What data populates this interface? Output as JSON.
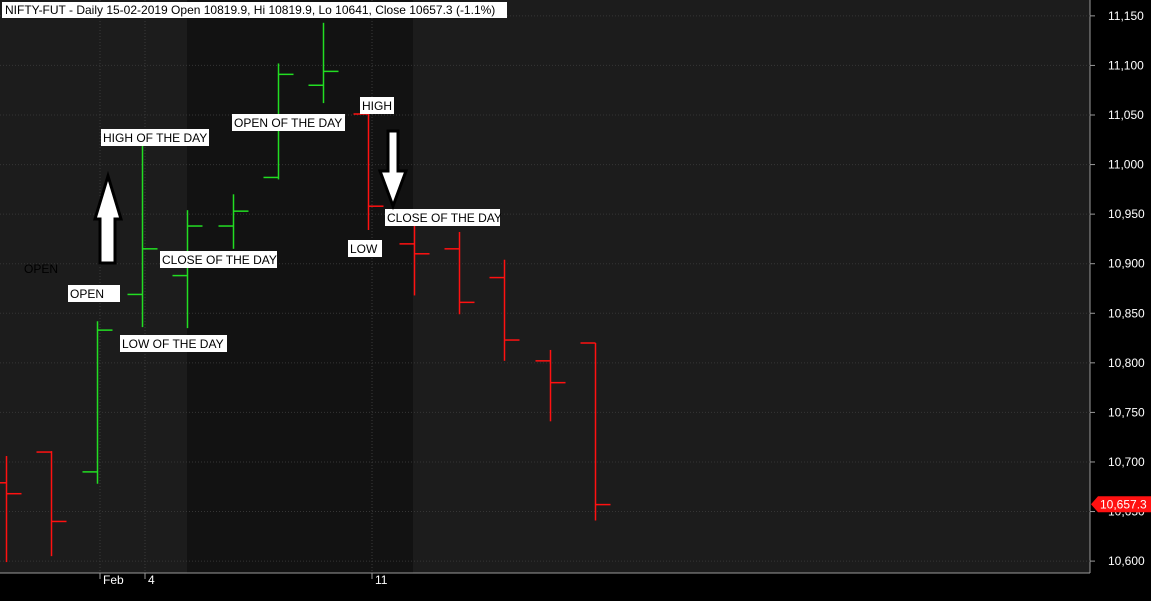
{
  "chart_data": {
    "type": "ohlc",
    "title": "NIFTY-FUT - Daily 15-02-2019 Open 10819.9, Hi 10819.9, Lo 10641, Close 10657.3 (-1.1%)",
    "ylim": [
      10588,
      11166
    ],
    "yticks": [
      10600,
      10650,
      10700,
      10750,
      10800,
      10850,
      10900,
      10950,
      11000,
      11050,
      11100,
      11150
    ],
    "ytick_labels": [
      "10,600",
      "10,650",
      "10,700",
      "10,750",
      "10,800",
      "10,850",
      "10,900",
      "10,950",
      "11,000",
      "11,050",
      "11,100",
      "11,150"
    ],
    "x_labels": [
      {
        "text": "Feb",
        "bar": 3
      },
      {
        "text": "4",
        "bar": 4
      },
      {
        "text": "11",
        "bar": 9
      }
    ],
    "last_price": {
      "label": "10,657.3",
      "value": 10657.3
    },
    "up_color": "#22dd22",
    "down_color": "#ff1111",
    "bars": [
      {
        "i": -0.1,
        "o": 10679,
        "h": 10706,
        "l": 10599,
        "c": 10668,
        "dir": "down"
      },
      {
        "i": 0.9,
        "o": 10710,
        "h": 10711,
        "l": 10605,
        "c": 10640,
        "dir": "down"
      },
      {
        "i": 1.9,
        "o": 10690,
        "h": 10842,
        "l": 10678,
        "c": 10833,
        "dir": "up"
      },
      {
        "i": 2.9,
        "o": 10869,
        "h": 11026,
        "l": 10836,
        "c": 10915,
        "dir": "up"
      },
      {
        "i": 3.9,
        "o": 10888,
        "h": 10954,
        "l": 10835,
        "c": 10938,
        "dir": "up"
      },
      {
        "i": 4.9,
        "o": 10938,
        "h": 10970,
        "l": 10915,
        "c": 10953,
        "dir": "up"
      },
      {
        "i": 5.9,
        "o": 10987,
        "h": 11102,
        "l": 10985,
        "c": 11091,
        "dir": "up"
      },
      {
        "i": 6.9,
        "o": 11080,
        "h": 11143,
        "l": 11062,
        "c": 11094,
        "dir": "up"
      },
      {
        "i": 7.9,
        "o": 11051,
        "h": 11057,
        "l": 10934,
        "c": 10958,
        "dir": "down"
      },
      {
        "i": 8.9,
        "o": 10920,
        "h": 10945,
        "l": 10868,
        "c": 10910,
        "dir": "down"
      },
      {
        "i": 9.9,
        "o": 10915,
        "h": 10932,
        "l": 10849,
        "c": 10861,
        "dir": "down"
      },
      {
        "i": 10.9,
        "o": 10886,
        "h": 10904,
        "l": 10802,
        "c": 10823,
        "dir": "down"
      },
      {
        "i": 11.9,
        "o": 10802,
        "h": 10813,
        "l": 10741,
        "c": 10780,
        "dir": "down"
      },
      {
        "i": 12.9,
        "o": 10820,
        "h": 10820,
        "l": 10641,
        "c": 10657,
        "dir": "down"
      }
    ],
    "annotations": [
      {
        "text": "HIGH OF THE DAY",
        "boxed": true,
        "pos": "bar4-high"
      },
      {
        "text": "OPEN OF THE DAY",
        "boxed": true,
        "pos": "bar8-open"
      },
      {
        "text": "HIGH",
        "boxed": true,
        "pos": "bar9-high"
      },
      {
        "text": "CLOSE OF THE DAY",
        "boxed": true,
        "pos": "bar4-close"
      },
      {
        "text": "CLOSE OF THE DAY",
        "boxed": true,
        "pos": "bar9-close"
      },
      {
        "text": "LOW",
        "boxed": true,
        "pos": "bar9-low"
      },
      {
        "text": "OPEN",
        "boxed": true,
        "pos": "bar4-open"
      },
      {
        "text": "LOW OF THE DAY",
        "boxed": true,
        "pos": "bar4-low"
      },
      {
        "text": "OPEN",
        "boxed": false,
        "pos": "left"
      }
    ]
  }
}
